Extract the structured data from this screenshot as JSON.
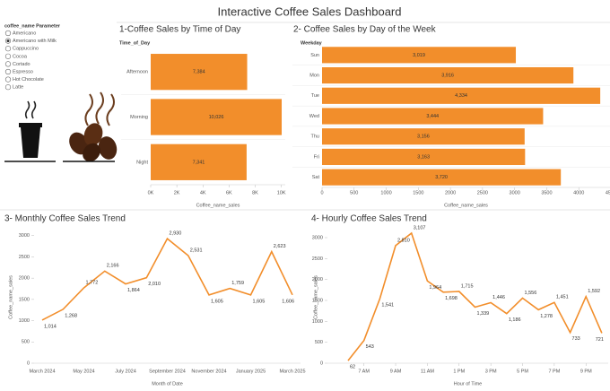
{
  "header": {
    "title": "Interactive Coffee Sales Dashboard"
  },
  "parameter": {
    "title": "coffee_name Parameter",
    "options": [
      "Americano",
      "Americano with Milk",
      "Cappuccino",
      "Cocoa",
      "Cortado",
      "Espresso",
      "Hot Chocolate",
      "Latte"
    ],
    "selected_index": 1
  },
  "chart_data": [
    {
      "type": "hbar",
      "title": "1-Coffee Sales by Time of Day",
      "category_header": "Time_of_Day",
      "x_label": "Coffee_name_sales",
      "categories": [
        "Afternoon",
        "Morning",
        "Night"
      ],
      "values": [
        7384,
        10026,
        7341
      ],
      "value_labels": [
        "7,384",
        "10,026",
        "7,341"
      ],
      "color": "#f28e2b",
      "xlim": [
        0,
        10300
      ],
      "xticks": [
        {
          "value": 0,
          "label": "0K"
        },
        {
          "value": 2000,
          "label": "2K"
        },
        {
          "value": 4000,
          "label": "4K"
        },
        {
          "value": 6000,
          "label": "6K"
        },
        {
          "value": 8000,
          "label": "8K"
        },
        {
          "value": 10000,
          "label": "10K"
        }
      ]
    },
    {
      "type": "hbar",
      "title": "2- Coffee Sales by Day of the Week",
      "category_header": "Weekday",
      "x_label": "Coffee_name_sales",
      "categories": [
        "Sun",
        "Mon",
        "Tue",
        "Wed",
        "Thu",
        "Fri",
        "Sat"
      ],
      "values": [
        3019,
        3916,
        4334,
        3444,
        3156,
        3163,
        3720
      ],
      "value_labels": [
        "3,019",
        "3,916",
        "4,334",
        "3,444",
        "3,156",
        "3,163",
        "3,720"
      ],
      "color": "#f28e2b",
      "xlim": [
        0,
        4500
      ],
      "xticks": [
        0,
        500,
        1000,
        1500,
        2000,
        2500,
        3000,
        3500,
        4000,
        4500
      ]
    },
    {
      "type": "line",
      "title": "3- Monthly Coffee Sales Trend",
      "x_label": "Month of Date",
      "y_label": "Coffee_name_sales",
      "categories": [
        "March 2024",
        null,
        "May 2024",
        null,
        "July 2024",
        null,
        "September 2024",
        null,
        "November 2024",
        null,
        "January 2025",
        null,
        "March 2025"
      ],
      "values": [
        1014,
        1268,
        1772,
        2166,
        1864,
        2010,
        2930,
        2531,
        1605,
        1759,
        1605,
        2623,
        1606
      ],
      "value_labels": [
        "1,014",
        "1,268",
        "1,772",
        "2,166",
        "1,864",
        "2,010",
        "2,930",
        "2,531",
        "1,605",
        "1,759",
        "1,605",
        "2,623",
        "1,606"
      ],
      "color": "#f28e2b",
      "ylim": [
        0,
        3100
      ],
      "yticks": [
        0,
        500,
        1000,
        1500,
        2000,
        2500,
        3000
      ]
    },
    {
      "type": "line",
      "title": "4- Hourly Coffee Sales Trend",
      "x_label": "Hour of Time",
      "y_label": "Coffee_name_sales",
      "x": [
        6,
        7,
        8,
        9,
        10,
        11,
        12,
        13,
        14,
        15,
        16,
        17,
        18,
        19,
        20,
        21,
        22
      ],
      "values": [
        62,
        543,
        1541,
        2810,
        3107,
        1964,
        1698,
        1715,
        1339,
        1446,
        1186,
        1556,
        1278,
        1451,
        733,
        1592,
        721
      ],
      "value_labels": [
        "62",
        "543",
        "1,541",
        "2,810",
        "3,107",
        "1,964",
        "1,698",
        "1,715",
        "1,339",
        "1,446",
        "1,186",
        "1,556",
        "1,278",
        "1,451",
        "733",
        "1,592",
        "721"
      ],
      "color": "#f28e2b",
      "xlim": [
        4.7,
        22.4
      ],
      "xticks": [
        {
          "value": 7,
          "label": "7 AM"
        },
        {
          "value": 9,
          "label": "9 AM"
        },
        {
          "value": 11,
          "label": "11 AM"
        },
        {
          "value": 13,
          "label": "1 PM"
        },
        {
          "value": 15,
          "label": "3 PM"
        },
        {
          "value": 17,
          "label": "5 PM"
        },
        {
          "value": 19,
          "label": "7 PM"
        },
        {
          "value": 21,
          "label": "9 PM"
        }
      ],
      "ylim": [
        0,
        3150
      ],
      "yticks": [
        0,
        500,
        1000,
        1500,
        2000,
        2500,
        3000
      ]
    }
  ]
}
